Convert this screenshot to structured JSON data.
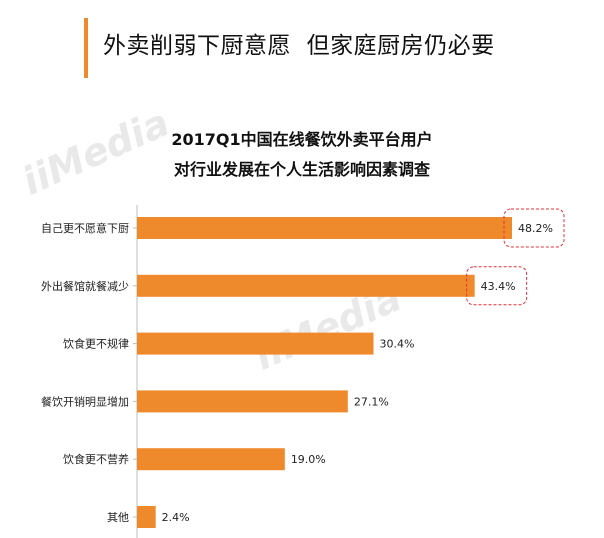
{
  "header": {
    "headline": "外卖削弱下厨意愿  但家庭厨房仍必要"
  },
  "watermark": "iiMedia",
  "colors": {
    "accent": "#ef8a2c",
    "bar": "#ef8a2c",
    "highlight_box": "#e0303a"
  },
  "chart_data": {
    "type": "bar",
    "orientation": "horizontal",
    "title": "2017Q1中国在线餐饮外卖平台用户",
    "subtitle": "对行业发展在个人生活影响因素调查",
    "categories": [
      "自己更不愿意下厨",
      "外出餐馆就餐减少",
      "饮食更不规律",
      "餐饮开销明显增加",
      "饮食更不营养",
      "其他"
    ],
    "values": [
      48.2,
      43.4,
      30.4,
      27.1,
      19.0,
      2.4
    ],
    "value_labels": [
      "48.2%",
      "43.4%",
      "30.4%",
      "27.1%",
      "19.0%",
      "2.4%"
    ],
    "highlighted": [
      0,
      1
    ],
    "xlim": [
      0,
      50
    ],
    "xlabel": "",
    "ylabel": "",
    "grid": false,
    "legend": "none"
  }
}
